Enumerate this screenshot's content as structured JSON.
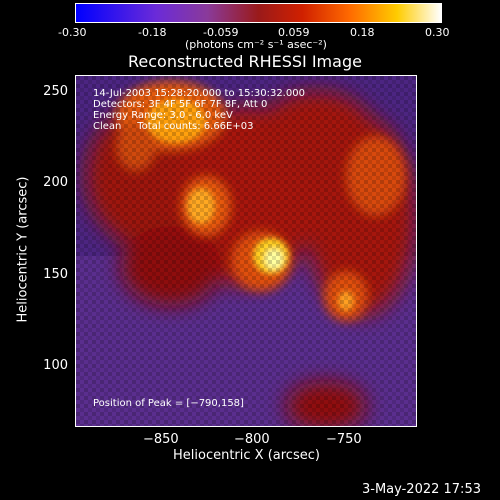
{
  "colorbar": {
    "ticks": [
      "-0.30",
      "-0.18",
      "-0.059",
      "0.059",
      "0.18",
      "0.30"
    ],
    "units_label": "(photons cm⁻² s⁻¹ asec⁻²)"
  },
  "title": "Reconstructed RHESSI Image",
  "axes": {
    "xlabel": "Heliocentric X (arcsec)",
    "ylabel": "Heliocentric Y (arcsec)",
    "xticks": [
      "−850",
      "−800",
      "−750"
    ],
    "yticks": [
      "250",
      "200",
      "150",
      "100"
    ]
  },
  "info": {
    "line1": "14-Jul-2003 15:28:20.000 to 15:30:32.000",
    "line2": "Detectors: 3F 4F 5F 6F 7F 8F, Att 0",
    "line3": "Energy Range: 3.0 - 6.0 keV",
    "line4": "Clean     Total counts: 6.66E+03",
    "peak": "Position of Peak = [−790,158]"
  },
  "footer": {
    "date": "3-May-2022 17:53"
  },
  "colors": {
    "background": "#000000",
    "low": "#5a2a8a",
    "mid": "#c01800",
    "high": "#ffd000",
    "peak": "#ffffa0"
  }
}
